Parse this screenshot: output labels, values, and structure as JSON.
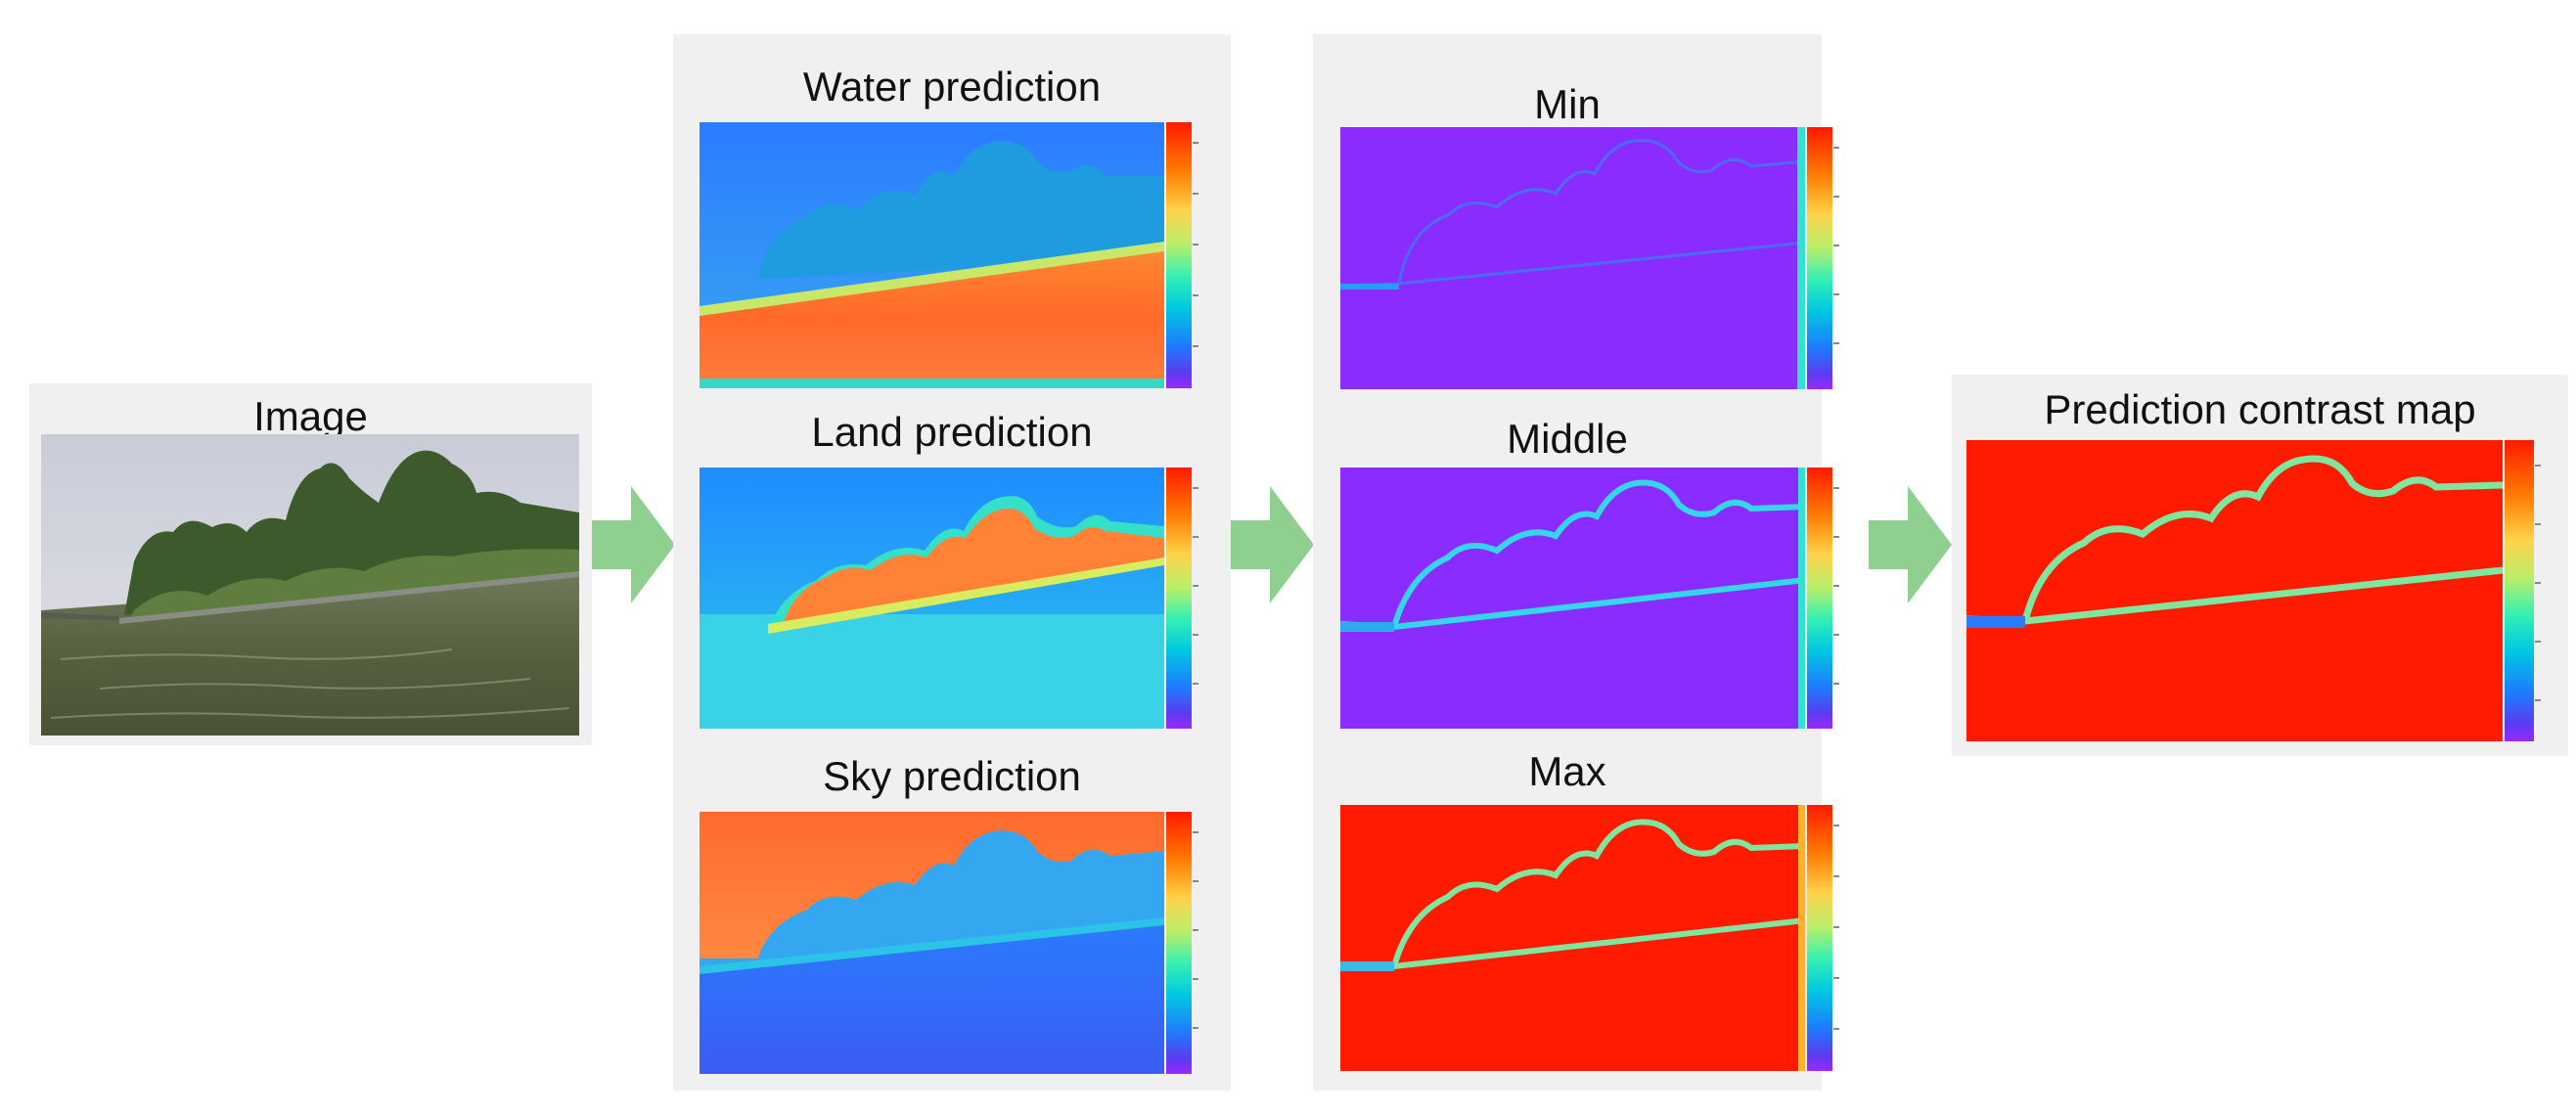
{
  "figure": {
    "input": {
      "label": "Image"
    },
    "predictions": [
      {
        "label": "Water prediction"
      },
      {
        "label": "Land prediction"
      },
      {
        "label": "Sky prediction"
      }
    ],
    "statistics": [
      {
        "label": "Min"
      },
      {
        "label": "Middle"
      },
      {
        "label": "Max"
      }
    ],
    "output": {
      "label": "Prediction contrast map"
    }
  },
  "colors": {
    "panel_bg": "#f0f0f0",
    "arrow": "#8fcf8f",
    "red": "#ff1a00",
    "purple": "#8a2bff",
    "cyan": "#35e6cc",
    "blue": "#2a8cff"
  }
}
